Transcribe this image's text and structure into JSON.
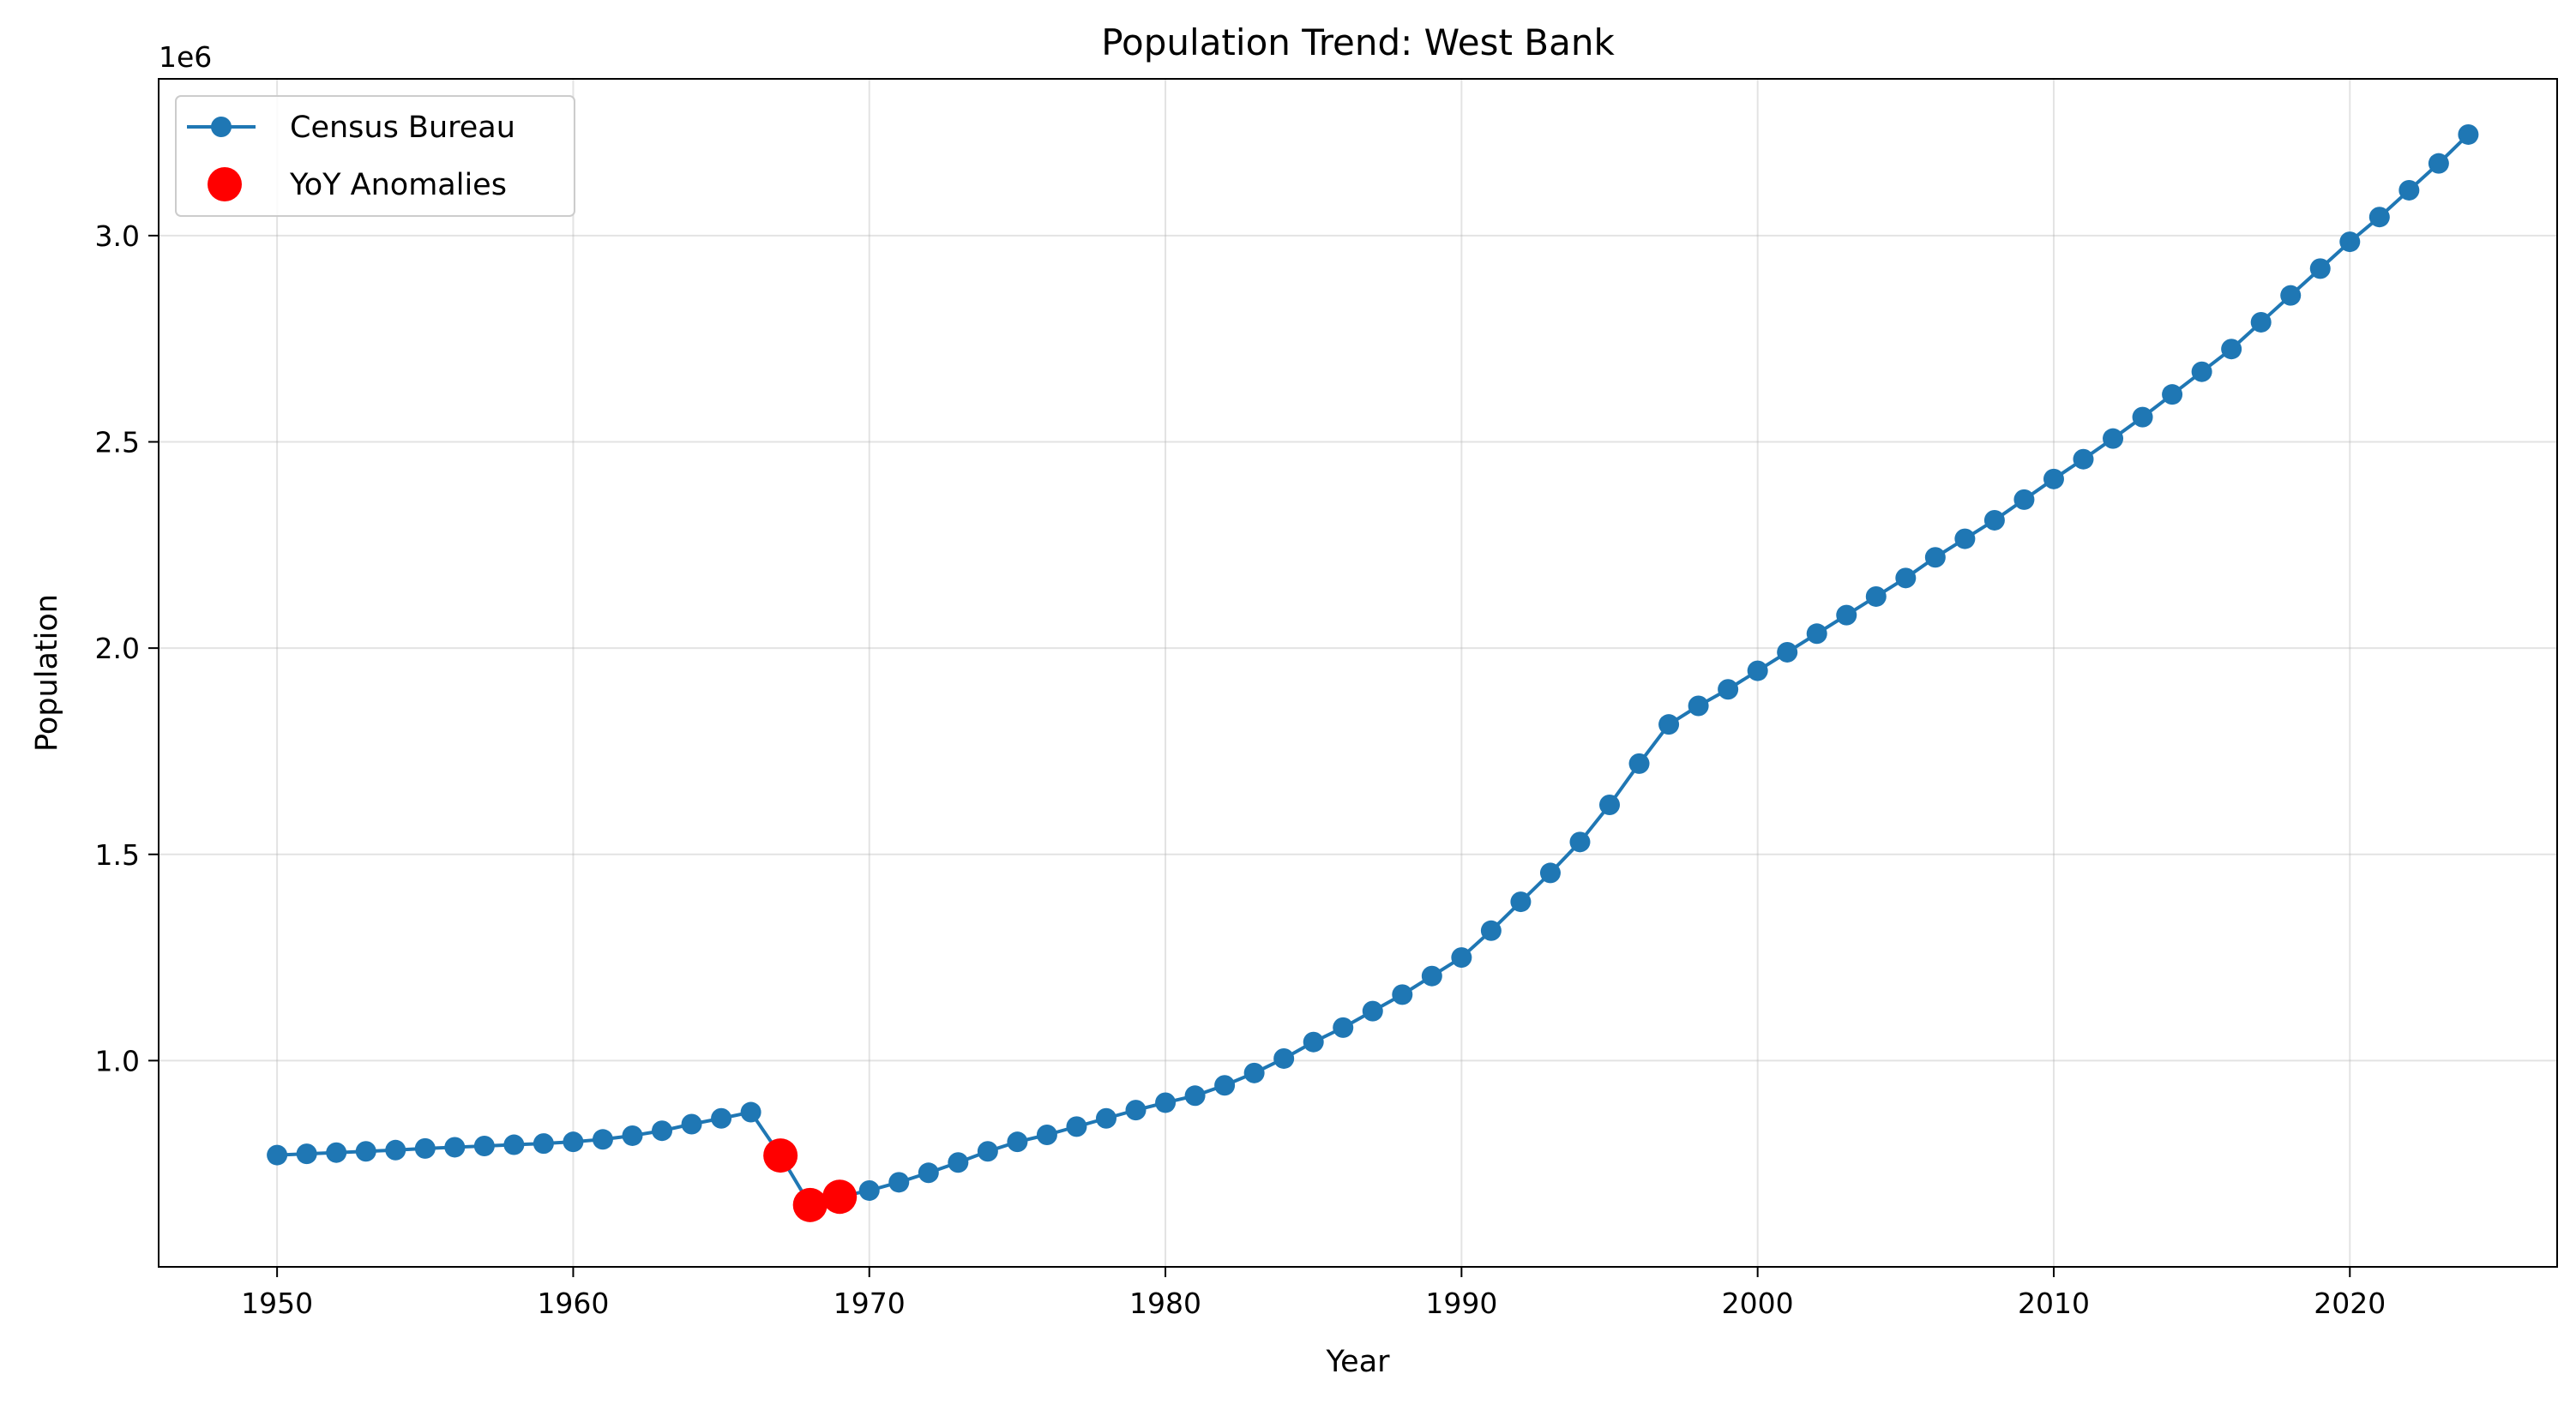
{
  "chart_data": {
    "type": "line",
    "title": "Population Trend: West Bank",
    "xlabel": "Year",
    "ylabel": "Population",
    "y_offset_label": "1e6",
    "xlim": [
      1946,
      2027
    ],
    "ylim": [
      0.5,
      3.38
    ],
    "y_scale": 1000000,
    "x_ticks": [
      1950,
      1960,
      1970,
      1980,
      1990,
      2000,
      2010,
      2020
    ],
    "x_tick_labels": [
      "1950",
      "1960",
      "1970",
      "1980",
      "1990",
      "2000",
      "2010",
      "2020"
    ],
    "y_ticks": [
      1.0,
      1.5,
      2.0,
      2.5,
      3.0
    ],
    "y_tick_labels": [
      "1.0",
      "1.5",
      "2.0",
      "2.5",
      "3.0"
    ],
    "grid": true,
    "legend_position": "top-left",
    "series": [
      {
        "name": "Census Bureau",
        "kind": "line-marker",
        "color": "#1f77b4",
        "x": [
          1950,
          1951,
          1952,
          1953,
          1954,
          1955,
          1956,
          1957,
          1958,
          1959,
          1960,
          1961,
          1962,
          1963,
          1964,
          1965,
          1966,
          1967,
          1968,
          1969,
          1970,
          1971,
          1972,
          1973,
          1974,
          1975,
          1976,
          1977,
          1978,
          1979,
          1980,
          1981,
          1982,
          1983,
          1984,
          1985,
          1986,
          1987,
          1988,
          1989,
          1990,
          1991,
          1992,
          1993,
          1994,
          1995,
          1996,
          1997,
          1998,
          1999,
          2000,
          2001,
          2002,
          2003,
          2004,
          2005,
          2006,
          2007,
          2008,
          2009,
          2010,
          2011,
          2012,
          2013,
          2014,
          2015,
          2016,
          2017,
          2018,
          2019,
          2020,
          2021,
          2022,
          2023,
          2024
        ],
        "y": [
          0.771,
          0.774,
          0.777,
          0.78,
          0.783,
          0.787,
          0.79,
          0.793,
          0.796,
          0.799,
          0.803,
          0.809,
          0.818,
          0.83,
          0.846,
          0.86,
          0.875,
          0.77,
          0.65,
          0.67,
          0.685,
          0.705,
          0.728,
          0.753,
          0.78,
          0.803,
          0.82,
          0.84,
          0.86,
          0.88,
          0.898,
          0.915,
          0.94,
          0.97,
          1.005,
          1.045,
          1.08,
          1.12,
          1.16,
          1.205,
          1.25,
          1.315,
          1.385,
          1.455,
          1.53,
          1.62,
          1.72,
          1.815,
          1.86,
          1.9,
          1.945,
          1.99,
          2.035,
          2.08,
          2.125,
          2.17,
          2.22,
          2.265,
          2.31,
          2.36,
          2.41,
          2.458,
          2.508,
          2.56,
          2.615,
          2.67,
          2.725,
          2.79,
          2.855,
          2.92,
          2.985,
          3.045,
          3.11,
          3.175,
          3.245
        ]
      },
      {
        "name": "YoY Anomalies",
        "kind": "scatter",
        "color": "#ff0000",
        "x": [
          1967,
          1968,
          1969
        ],
        "y": [
          0.77,
          0.65,
          0.67
        ]
      }
    ]
  }
}
